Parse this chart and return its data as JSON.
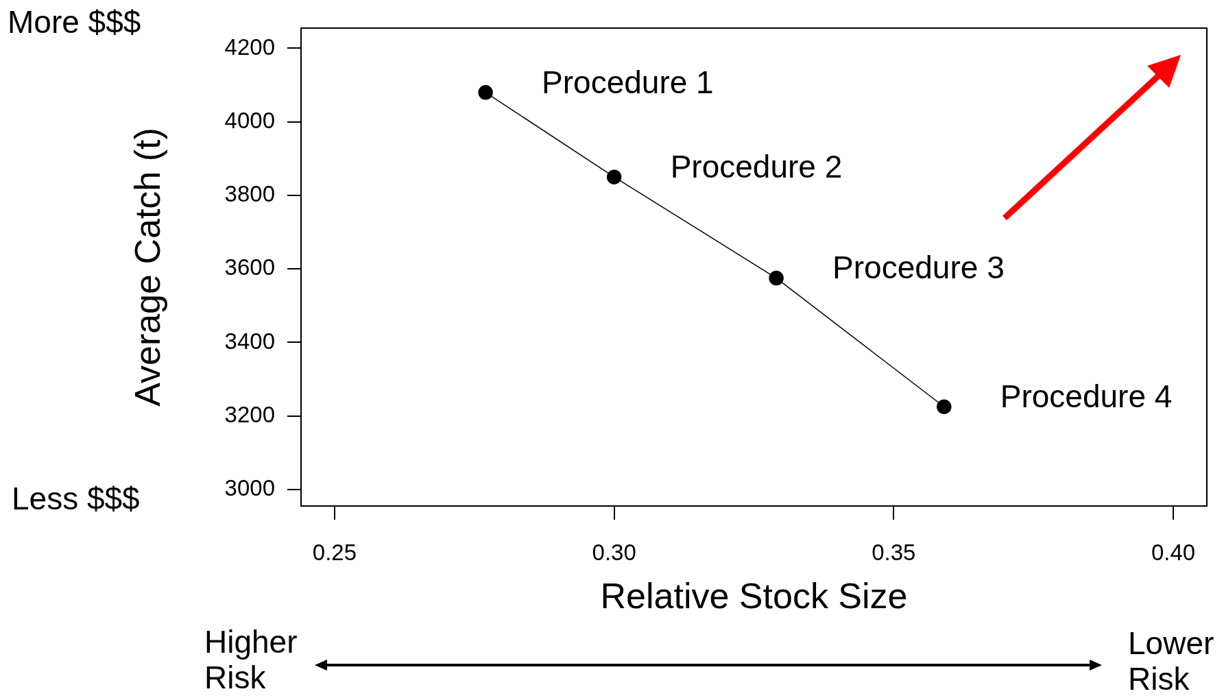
{
  "chart_data": {
    "type": "line",
    "xlabel": "Relative Stock Size",
    "ylabel": "Average Catch (t)",
    "x": [
      0.277,
      0.3,
      0.329,
      0.359
    ],
    "series": [
      {
        "color": "#000000",
        "values": [
          4080,
          3850,
          3575,
          3225
        ]
      }
    ],
    "xlim": [
      0.244,
      0.406
    ],
    "ylim": [
      2955,
      4255
    ],
    "xticks": [
      {
        "value": 0.25,
        "label": "0.25"
      },
      {
        "value": 0.3,
        "label": "0.30"
      },
      {
        "value": 0.35,
        "label": "0.35"
      },
      {
        "value": 0.4,
        "label": "0.40"
      }
    ],
    "yticks": [
      3000,
      3200,
      3400,
      3600,
      3800,
      4000,
      4200
    ],
    "grid": false,
    "legend": false,
    "marker": "circle",
    "line_style": "solid",
    "annotations": [
      "More $$$",
      "Less $$$",
      "Higher Risk",
      "Lower Risk",
      {
        "text": "Procedure 1",
        "x": 0.277,
        "y": 4080
      },
      {
        "text": "Procedure 2",
        "x": 0.3,
        "y": 3850
      },
      {
        "text": "Procedure 3",
        "x": 0.329,
        "y": 3575
      },
      {
        "text": "Procedure 4",
        "x": 0.359,
        "y": 3225
      }
    ]
  }
}
